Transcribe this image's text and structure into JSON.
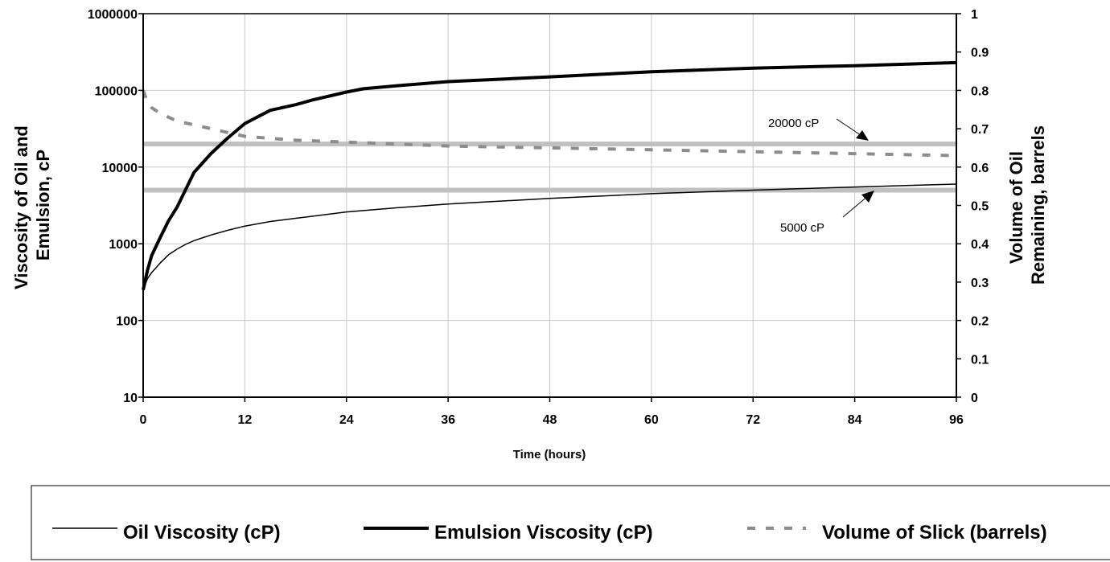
{
  "chart_data": {
    "type": "line",
    "xlabel": "Time (hours)",
    "ylabel": "Viscosity of Oil and Emulsion, cP",
    "ylabel_lines": [
      "Viscosity of Oil and",
      "Emulsion, cP"
    ],
    "y2label": "Volume of Oil Remaining, barrels",
    "y2label_lines": [
      "Volume of Oil",
      "Remaining, barrels"
    ],
    "xlim": [
      0,
      96
    ],
    "ylim": [
      10,
      1000000
    ],
    "y_scale": "log",
    "y2lim": [
      0,
      1
    ],
    "x_ticks": [
      "0",
      "12",
      "24",
      "36",
      "48",
      "60",
      "72",
      "84",
      "96"
    ],
    "y_ticks": [
      "10",
      "100",
      "1000",
      "10000",
      "100000",
      "1000000"
    ],
    "y2_ticks": [
      "0",
      "0.1",
      "0.2",
      "0.3",
      "0.4",
      "0.5",
      "0.6",
      "0.7",
      "0.8",
      "0.9",
      "1"
    ],
    "grid": true,
    "legend_position": "bottom",
    "series": [
      {
        "name": "Oil Viscosity (cP)",
        "axis": "left",
        "color": "#000000",
        "style": "solid-thin",
        "x": [
          0,
          0.5,
          1,
          2,
          3,
          4,
          5,
          6,
          8,
          10,
          12,
          15,
          18,
          24,
          30,
          36,
          48,
          60,
          72,
          84,
          96
        ],
        "y": [
          250,
          350,
          420,
          560,
          720,
          850,
          980,
          1100,
          1300,
          1500,
          1700,
          1950,
          2150,
          2600,
          2950,
          3300,
          3900,
          4500,
          5000,
          5500,
          6000
        ]
      },
      {
        "name": "Emulsion Viscosity (cP)",
        "axis": "left",
        "color": "#000000",
        "style": "solid-thick",
        "x": [
          0,
          0.5,
          1,
          2,
          3,
          4,
          6,
          8,
          10,
          12,
          15,
          18,
          20,
          24,
          26,
          30,
          36,
          48,
          60,
          72,
          84,
          96
        ],
        "y": [
          250,
          450,
          700,
          1200,
          2000,
          3000,
          8500,
          15000,
          24000,
          37000,
          55000,
          65000,
          75000,
          95000,
          105000,
          115000,
          130000,
          150000,
          175000,
          195000,
          210000,
          230000
        ]
      },
      {
        "name": "Volume of Slick (barrels)",
        "axis": "right",
        "color": "#8c8c8c",
        "style": "dashed",
        "x": [
          0,
          0.5,
          1,
          2,
          3,
          4,
          6,
          8,
          10,
          12,
          15,
          18,
          24,
          30,
          36,
          48,
          60,
          72,
          84,
          96
        ],
        "y": [
          0.8,
          0.77,
          0.755,
          0.74,
          0.73,
          0.72,
          0.71,
          0.7,
          0.69,
          0.68,
          0.675,
          0.67,
          0.665,
          0.66,
          0.655,
          0.65,
          0.645,
          0.64,
          0.635,
          0.63
        ]
      }
    ],
    "reference_lines": [
      {
        "value": 20000,
        "axis": "left",
        "label": "20000 cP",
        "color": "#c0c0c0"
      },
      {
        "value": 5000,
        "axis": "left",
        "label": "5000 cP",
        "color": "#c0c0c0"
      }
    ]
  }
}
